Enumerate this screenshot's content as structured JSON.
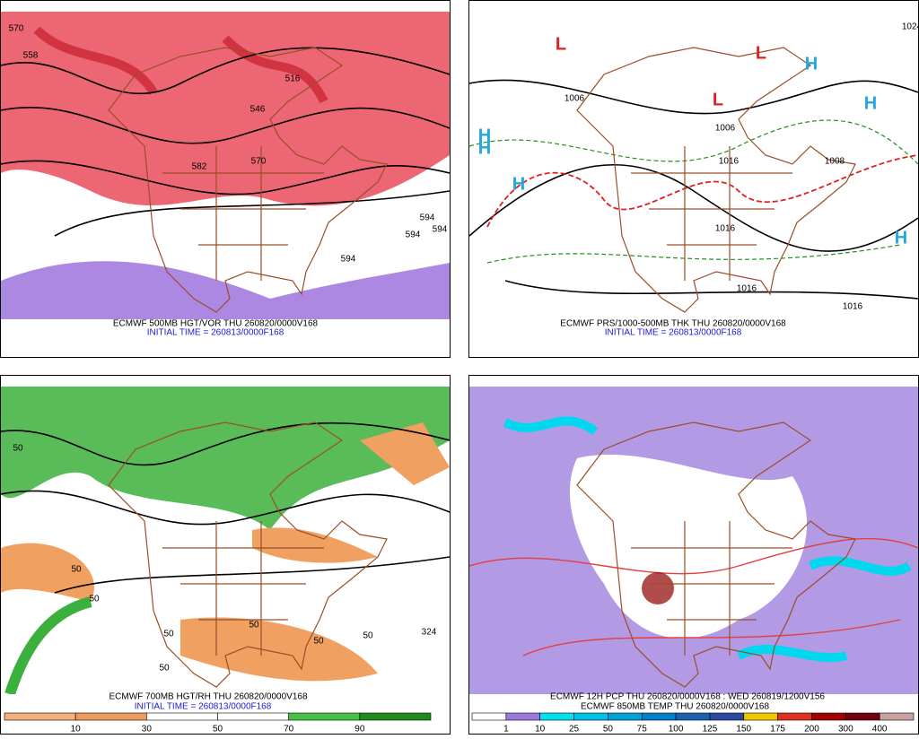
{
  "panels": [
    {
      "caption": "ECMWF 500MB HGT/VOR THU 260820/0000V168",
      "subcaption": "INITIAL TIME = 260813/0000F168",
      "labels": [
        "570",
        "558",
        "516",
        "546",
        "582",
        "570",
        "594",
        "594",
        "594",
        "594"
      ]
    },
    {
      "caption": "ECMWF PRS/1000-500MB THK THU 260820/0000V168",
      "subcaption": "INITIAL TIME = 260813/0000F168",
      "labels": [
        "H",
        "H",
        "H",
        "H",
        "H",
        "H",
        "L",
        "L",
        "L",
        "1006",
        "1006",
        "1016",
        "1024",
        "1016",
        "1008",
        "1016",
        "1016"
      ]
    },
    {
      "caption": "ECMWF 700MB HGT/RH THU 260820/0000V168",
      "subcaption": "INITIAL TIME = 260813/0000F168",
      "labels": [
        "50",
        "50",
        "50",
        "50",
        "50",
        "50",
        "324",
        "50",
        "50"
      ],
      "colorbar": {
        "labels": [
          10,
          30,
          50,
          70,
          90
        ],
        "colors": [
          "#f4b07c",
          "#ee9a5a",
          "#ffffff",
          "#ffffff",
          "#48c048",
          "#1c8c1c"
        ]
      }
    },
    {
      "caption": "ECMWF 12H PCP THU 260820/0000V168 : WED 260819/1200V156",
      "subcaption": "ECMWF 850MB TEMP THU 260820/0000V168",
      "labels": [],
      "colorbar": {
        "labels": [
          1,
          10,
          25,
          50,
          75,
          100,
          125,
          150,
          175,
          200,
          300,
          400
        ],
        "colors": [
          "#ffffff",
          "#9a78dc",
          "#00e0f0",
          "#00c0e8",
          "#00a0d8",
          "#0080c8",
          "#1c60b0",
          "#2a48a0",
          "#f0c800",
          "#e03020",
          "#a00000",
          "#700010",
          "#c8a0a0"
        ]
      }
    }
  ]
}
